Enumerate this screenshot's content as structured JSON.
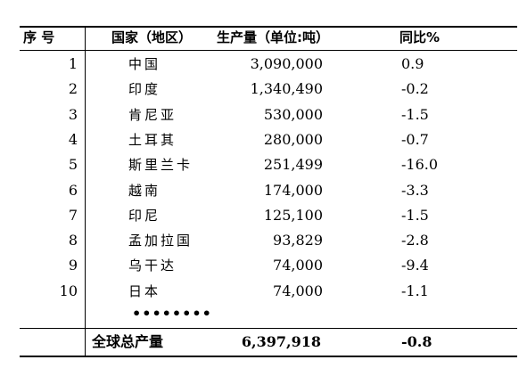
{
  "table": {
    "headers": {
      "rank": "序 号",
      "country": "国家（地区）",
      "production": "生产量（单位:吨）",
      "yoy": "同比%"
    },
    "rows": [
      {
        "rank": "1",
        "country": "中国",
        "production": "3,090,000",
        "yoy": "0.9"
      },
      {
        "rank": "2",
        "country": "印度",
        "production": "1,340,490",
        "yoy": "-0.2"
      },
      {
        "rank": "3",
        "country": "肯尼亚",
        "production": "530,000",
        "yoy": "-1.5"
      },
      {
        "rank": "4",
        "country": "土耳其",
        "production": "280,000",
        "yoy": "-0.7"
      },
      {
        "rank": "5",
        "country": "斯里兰卡",
        "production": "251,499",
        "yoy": "-16.0"
      },
      {
        "rank": "6",
        "country": "越南",
        "production": "174,000",
        "yoy": "-3.3"
      },
      {
        "rank": "7",
        "country": "印尼",
        "production": "125,100",
        "yoy": "-1.5"
      },
      {
        "rank": "8",
        "country": "孟加拉国",
        "production": "93,829",
        "yoy": "-2.8"
      },
      {
        "rank": "9",
        "country": "乌干达",
        "production": "74,000",
        "yoy": "-9.4"
      },
      {
        "rank": "10",
        "country": "日本",
        "production": "74,000",
        "yoy": "-1.1"
      }
    ],
    "ellipsis": "••••••••",
    "total": {
      "label": "全球总产量",
      "production": "6,397,918",
      "yoy": "-0.8"
    }
  }
}
